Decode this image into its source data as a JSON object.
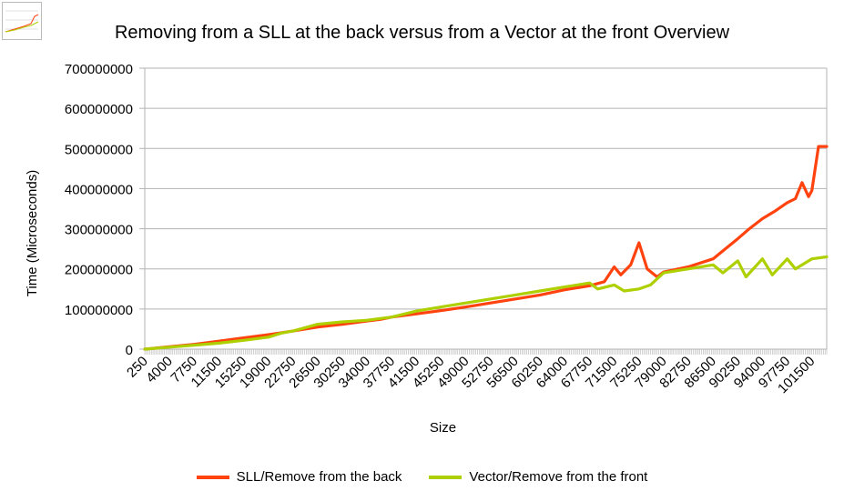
{
  "chart_data": {
    "type": "line",
    "title": "Removing from a SLL at the back versus from a Vector at the front Overview",
    "xlabel": "Size",
    "ylabel": "Time (Microseconds)",
    "ylim": [
      0,
      700000000
    ],
    "yticks": [
      "700000000",
      "600000000",
      "500000000",
      "400000000",
      "300000000",
      "200000000",
      "100000000",
      "0"
    ],
    "ytick_values": [
      700000000,
      600000000,
      500000000,
      400000000,
      300000000,
      200000000,
      100000000,
      0
    ],
    "xticks": [
      "250",
      "4000",
      "7750",
      "11500",
      "15250",
      "19000",
      "22750",
      "26500",
      "30250",
      "34000",
      "37750",
      "41500",
      "45250",
      "49000",
      "52750",
      "56500",
      "60250",
      "64000",
      "67750",
      "71500",
      "75250",
      "79000",
      "82750",
      "86500",
      "90250",
      "94000",
      "97750",
      "101500"
    ],
    "xlim": [
      250,
      103750
    ],
    "grid": "horizontal",
    "legend_position": "bottom",
    "series": [
      {
        "name": "SLL/Remove from the back",
        "color": "#ff420e",
        "points": [
          [
            250,
            0
          ],
          [
            4000,
            6000000
          ],
          [
            7750,
            12000000
          ],
          [
            11500,
            20000000
          ],
          [
            15250,
            28000000
          ],
          [
            19000,
            36000000
          ],
          [
            22750,
            45000000
          ],
          [
            26500,
            55000000
          ],
          [
            30250,
            62000000
          ],
          [
            34000,
            70000000
          ],
          [
            36000,
            74000000
          ],
          [
            37750,
            80000000
          ],
          [
            41500,
            88000000
          ],
          [
            45250,
            96000000
          ],
          [
            49000,
            105000000
          ],
          [
            52750,
            115000000
          ],
          [
            56500,
            125000000
          ],
          [
            60250,
            135000000
          ],
          [
            64000,
            148000000
          ],
          [
            67750,
            158000000
          ],
          [
            70000,
            168000000
          ],
          [
            71500,
            205000000
          ],
          [
            72500,
            185000000
          ],
          [
            74000,
            210000000
          ],
          [
            75250,
            265000000
          ],
          [
            76500,
            200000000
          ],
          [
            78000,
            180000000
          ],
          [
            79000,
            192000000
          ],
          [
            82750,
            205000000
          ],
          [
            86500,
            225000000
          ],
          [
            88000,
            245000000
          ],
          [
            90250,
            275000000
          ],
          [
            92000,
            300000000
          ],
          [
            94000,
            325000000
          ],
          [
            96000,
            345000000
          ],
          [
            97750,
            365000000
          ],
          [
            99000,
            375000000
          ],
          [
            100000,
            415000000
          ],
          [
            101000,
            380000000
          ],
          [
            101500,
            395000000
          ],
          [
            102500,
            505000000
          ],
          [
            103750,
            505000000
          ]
        ]
      },
      {
        "name": "Vector/Remove from the front",
        "color": "#aecf00",
        "points": [
          [
            250,
            0
          ],
          [
            4000,
            5000000
          ],
          [
            7750,
            10000000
          ],
          [
            11500,
            15000000
          ],
          [
            15250,
            22000000
          ],
          [
            19000,
            30000000
          ],
          [
            21000,
            40000000
          ],
          [
            22750,
            45000000
          ],
          [
            26500,
            62000000
          ],
          [
            30250,
            68000000
          ],
          [
            34000,
            72000000
          ],
          [
            37750,
            80000000
          ],
          [
            41500,
            95000000
          ],
          [
            45250,
            105000000
          ],
          [
            49000,
            115000000
          ],
          [
            52750,
            125000000
          ],
          [
            56500,
            135000000
          ],
          [
            60250,
            145000000
          ],
          [
            64000,
            155000000
          ],
          [
            67750,
            165000000
          ],
          [
            69000,
            150000000
          ],
          [
            71500,
            160000000
          ],
          [
            73000,
            145000000
          ],
          [
            75250,
            150000000
          ],
          [
            77000,
            160000000
          ],
          [
            79000,
            190000000
          ],
          [
            82750,
            200000000
          ],
          [
            86500,
            210000000
          ],
          [
            88000,
            190000000
          ],
          [
            90250,
            220000000
          ],
          [
            91500,
            180000000
          ],
          [
            94000,
            225000000
          ],
          [
            95500,
            185000000
          ],
          [
            97750,
            225000000
          ],
          [
            99000,
            200000000
          ],
          [
            101500,
            225000000
          ],
          [
            103750,
            230000000
          ]
        ]
      }
    ]
  }
}
